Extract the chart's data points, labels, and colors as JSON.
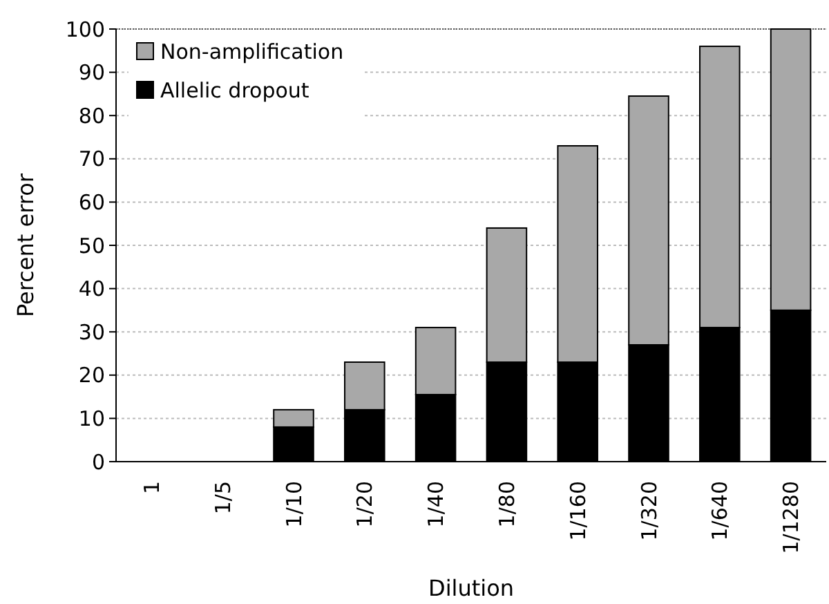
{
  "chart_data": {
    "type": "bar",
    "stacked": true,
    "xlabel": "Dilution",
    "ylabel": "Percent error",
    "categories": [
      "1",
      "1/5",
      "1/10",
      "1/20",
      "1/40",
      "1/80",
      "1/160",
      "1/320",
      "1/640",
      "1/1280"
    ],
    "series": [
      {
        "name": "Allelic dropout",
        "color": "#000000",
        "values": [
          0,
          0,
          8,
          12,
          15.5,
          23,
          23,
          27,
          31,
          35
        ]
      },
      {
        "name": "Non-amplification",
        "color": "#a8a8a8",
        "values": [
          0,
          0,
          4,
          11,
          15.5,
          31,
          50,
          57.5,
          65,
          65
        ]
      }
    ],
    "ylim": [
      0,
      100
    ],
    "yticks": [
      0,
      10,
      20,
      30,
      40,
      50,
      60,
      70,
      80,
      90,
      100
    ],
    "grid": "y",
    "legend": "top left"
  }
}
